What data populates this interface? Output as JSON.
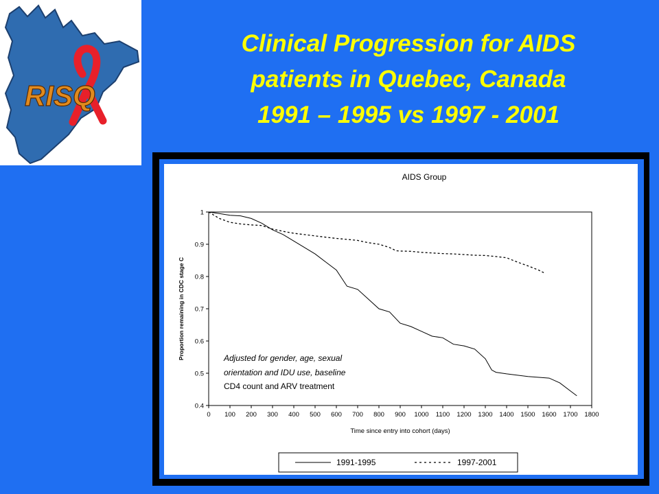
{
  "slide": {
    "title_lines": [
      "Clinical Progression for AIDS",
      "patients in  Quebec, Canada",
      "1991 – 1995 vs 1997 - 2001"
    ],
    "background_color": "#1F6FF2",
    "title_color": "#FFFF00"
  },
  "logo": {
    "text": "RISQ",
    "map_color": "#2F6CB0",
    "ribbon_color": "#E8202A",
    "text_color": "#E08A1E"
  },
  "chart_data": {
    "type": "line",
    "title": "AIDS Group",
    "xlabel": "Time since entry into cohort (days)",
    "ylabel": "Proportion remaining in CDC stage C",
    "xlim": [
      0,
      1800
    ],
    "ylim": [
      0.4,
      1
    ],
    "xticks": [
      0,
      100,
      200,
      300,
      400,
      500,
      600,
      700,
      800,
      900,
      1000,
      1100,
      1200,
      1300,
      1400,
      1500,
      1600,
      1700,
      1800
    ],
    "yticks": [
      0.4,
      0.5,
      0.6,
      0.7,
      0.8,
      0.9,
      1
    ],
    "grid": false,
    "legend_position": "bottom",
    "annotation_lines": [
      "Adjusted for gender, age, sexual",
      "orientation and IDU use, baseline",
      "CD4 count and ARV treatment"
    ],
    "series": [
      {
        "name": "1991-1995",
        "style": "solid",
        "x": [
          0,
          50,
          100,
          150,
          200,
          250,
          300,
          350,
          400,
          450,
          500,
          550,
          600,
          650,
          700,
          750,
          800,
          850,
          900,
          950,
          1000,
          1050,
          1100,
          1150,
          1200,
          1250,
          1300,
          1330,
          1350,
          1400,
          1500,
          1600,
          1650,
          1700,
          1730
        ],
        "y": [
          1.0,
          0.995,
          0.99,
          0.988,
          0.98,
          0.965,
          0.945,
          0.93,
          0.91,
          0.89,
          0.87,
          0.845,
          0.82,
          0.77,
          0.76,
          0.73,
          0.7,
          0.69,
          0.655,
          0.645,
          0.63,
          0.615,
          0.61,
          0.59,
          0.585,
          0.575,
          0.545,
          0.51,
          0.503,
          0.498,
          0.49,
          0.485,
          0.47,
          0.445,
          0.43
        ]
      },
      {
        "name": "1997-2001",
        "style": "dashed",
        "x": [
          0,
          50,
          100,
          150,
          200,
          250,
          300,
          350,
          400,
          450,
          500,
          550,
          600,
          650,
          700,
          750,
          800,
          850,
          880,
          900,
          950,
          1000,
          1050,
          1100,
          1150,
          1200,
          1250,
          1300,
          1350,
          1400,
          1450,
          1500,
          1550,
          1580
        ],
        "y": [
          1.0,
          0.98,
          0.968,
          0.963,
          0.96,
          0.958,
          0.947,
          0.94,
          0.934,
          0.93,
          0.926,
          0.922,
          0.918,
          0.915,
          0.912,
          0.905,
          0.9,
          0.89,
          0.88,
          0.879,
          0.878,
          0.875,
          0.873,
          0.871,
          0.87,
          0.868,
          0.866,
          0.865,
          0.862,
          0.858,
          0.845,
          0.833,
          0.82,
          0.81
        ]
      }
    ]
  }
}
